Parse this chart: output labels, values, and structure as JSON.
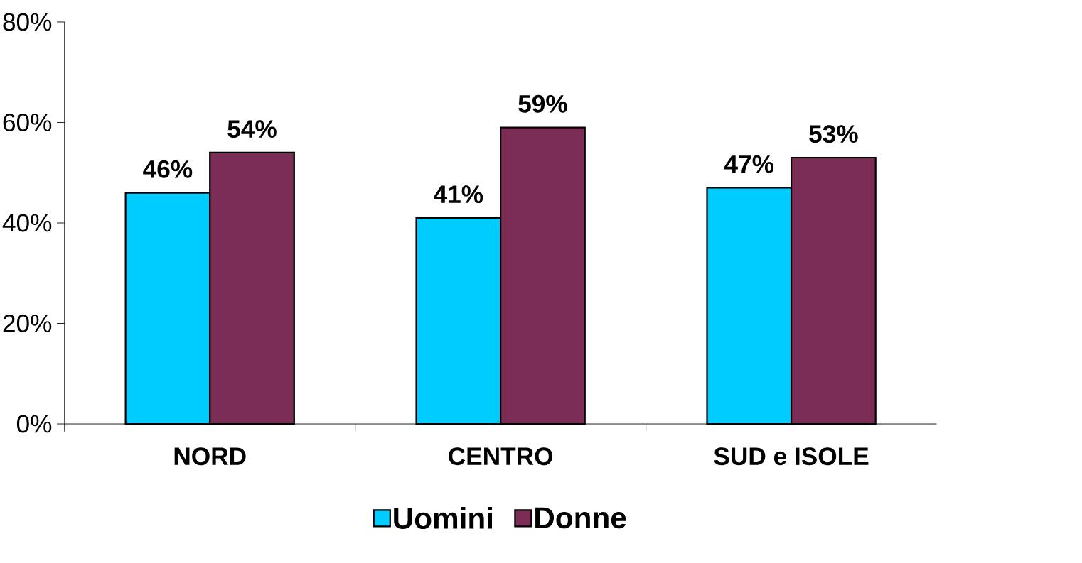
{
  "chart_data": {
    "type": "bar",
    "categories": [
      "NORD",
      "CENTRO",
      "SUD e ISOLE"
    ],
    "series": [
      {
        "name": "Uomini",
        "color": "#00ccff",
        "values": [
          46,
          41,
          47
        ],
        "value_labels": [
          "46%",
          "41%",
          "47%"
        ]
      },
      {
        "name": "Donne",
        "color": "#7b2d56",
        "values": [
          54,
          59,
          53
        ],
        "value_labels": [
          "54%",
          "59%",
          "53%"
        ]
      }
    ],
    "ylim": [
      0,
      80
    ],
    "yticks": [
      {
        "value": 0,
        "label": "0%"
      },
      {
        "value": 20,
        "label": "20%"
      },
      {
        "value": 40,
        "label": "40%"
      },
      {
        "value": 60,
        "label": "60%"
      },
      {
        "value": 80,
        "label": "80%"
      }
    ],
    "grid": false,
    "legend": "bottom"
  }
}
